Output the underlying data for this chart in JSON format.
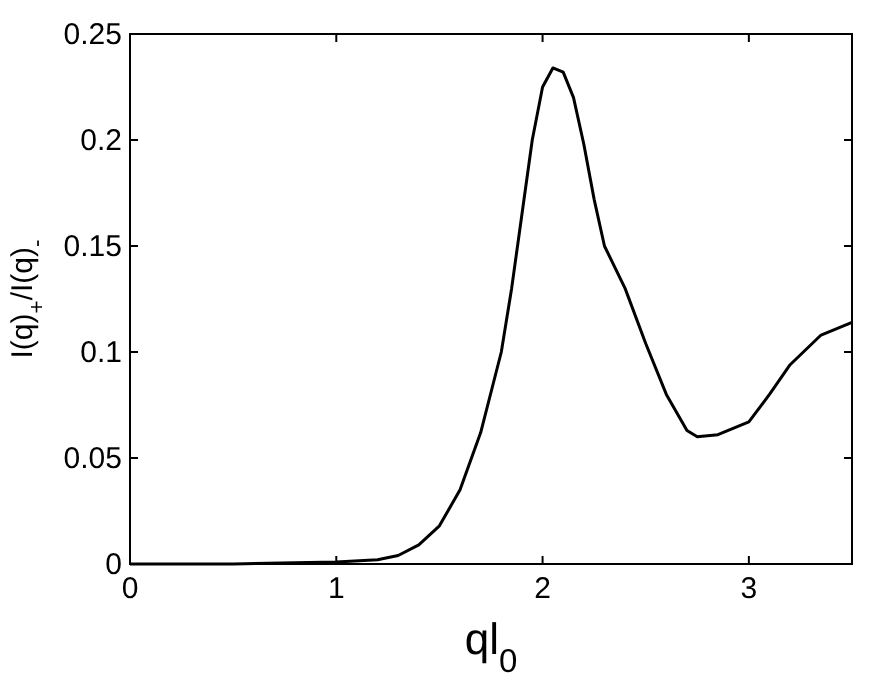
{
  "chart_data": {
    "type": "line",
    "xlabel": "ql$_{0}$",
    "ylabel": "I(q)$_{+}$/I(q)$_{-}$",
    "xlim": [
      0,
      3.5
    ],
    "xticks": [
      0,
      1,
      2,
      3
    ],
    "ylim": [
      0,
      0.25
    ],
    "yticks": [
      0,
      0.05,
      0.1,
      0.15,
      0.2,
      0.25
    ],
    "marker": "none",
    "line_style": "solid",
    "x": [
      0,
      0.5,
      1,
      1.2,
      1.3,
      1.4,
      1.5,
      1.6,
      1.7,
      1.8,
      1.85,
      1.9,
      1.95,
      2.0,
      2.05,
      2.1,
      2.15,
      2.2,
      2.25,
      2.3,
      2.4,
      2.5,
      2.6,
      2.7,
      2.75,
      2.85,
      3.0,
      3.1,
      3.2,
      3.35,
      3.5
    ],
    "series": [
      {
        "color": "#000000",
        "values": [
          0,
          0,
          0.001,
          0.002,
          0.004,
          0.009,
          0.018,
          0.035,
          0.062,
          0.1,
          0.13,
          0.165,
          0.2,
          0.225,
          0.234,
          0.232,
          0.22,
          0.198,
          0.172,
          0.15,
          0.13,
          0.104,
          0.08,
          0.063,
          0.06,
          0.061,
          0.067,
          0.08,
          0.094,
          0.108,
          0.114
        ]
      }
    ]
  }
}
